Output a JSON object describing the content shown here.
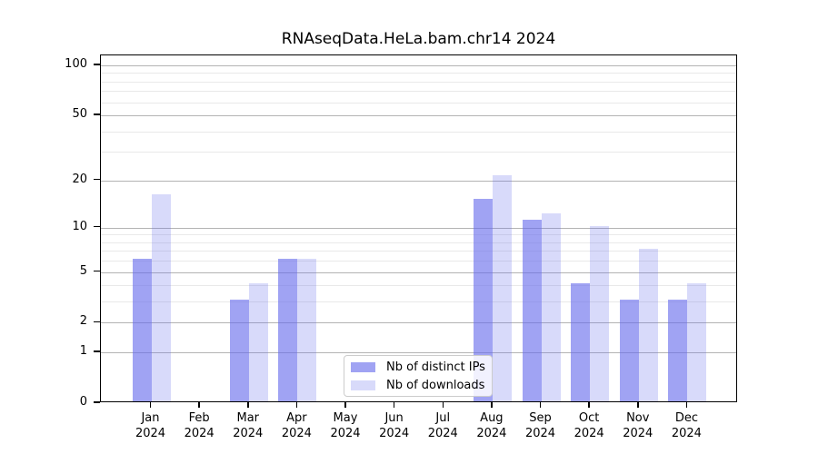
{
  "chart_data": {
    "type": "bar",
    "title": "RNAseqData.HeLa.bam.chr14 2024",
    "categories": [
      "Jan",
      "Feb",
      "Mar",
      "Apr",
      "May",
      "Jun",
      "Jul",
      "Aug",
      "Sep",
      "Oct",
      "Nov",
      "Dec"
    ],
    "category_year": "2024",
    "series": [
      {
        "name": "Nb of distinct IPs",
        "color": "rgba(101,106,235,0.62)",
        "values": [
          6,
          0,
          3,
          6,
          0,
          0,
          0,
          15,
          11,
          4,
          3,
          3
        ]
      },
      {
        "name": "Nb of downloads",
        "color": "rgba(101,106,235,0.25)",
        "values": [
          16,
          0,
          4,
          6,
          0,
          0,
          0,
          21,
          12,
          10,
          7,
          4
        ]
      }
    ],
    "xlabel": "",
    "ylabel": "",
    "yscale": "log1p",
    "ylim": [
      0,
      115
    ],
    "yticks_major": [
      0,
      1,
      2,
      5,
      10,
      20,
      50,
      100
    ],
    "yticks_minor": [
      3,
      4,
      6,
      7,
      8,
      9,
      30,
      40,
      60,
      70,
      80,
      90
    ],
    "grid": true,
    "legend_position": "lower center"
  },
  "colors": {
    "bar_base": "#656aeb",
    "bar_distinct_ips": "rgba(101,106,235,0.62)",
    "bar_downloads": "rgba(101,106,235,0.25)",
    "grid_major": "#b3b3b3",
    "grid_minor": "#e9e9e9",
    "axis": "#000000"
  }
}
